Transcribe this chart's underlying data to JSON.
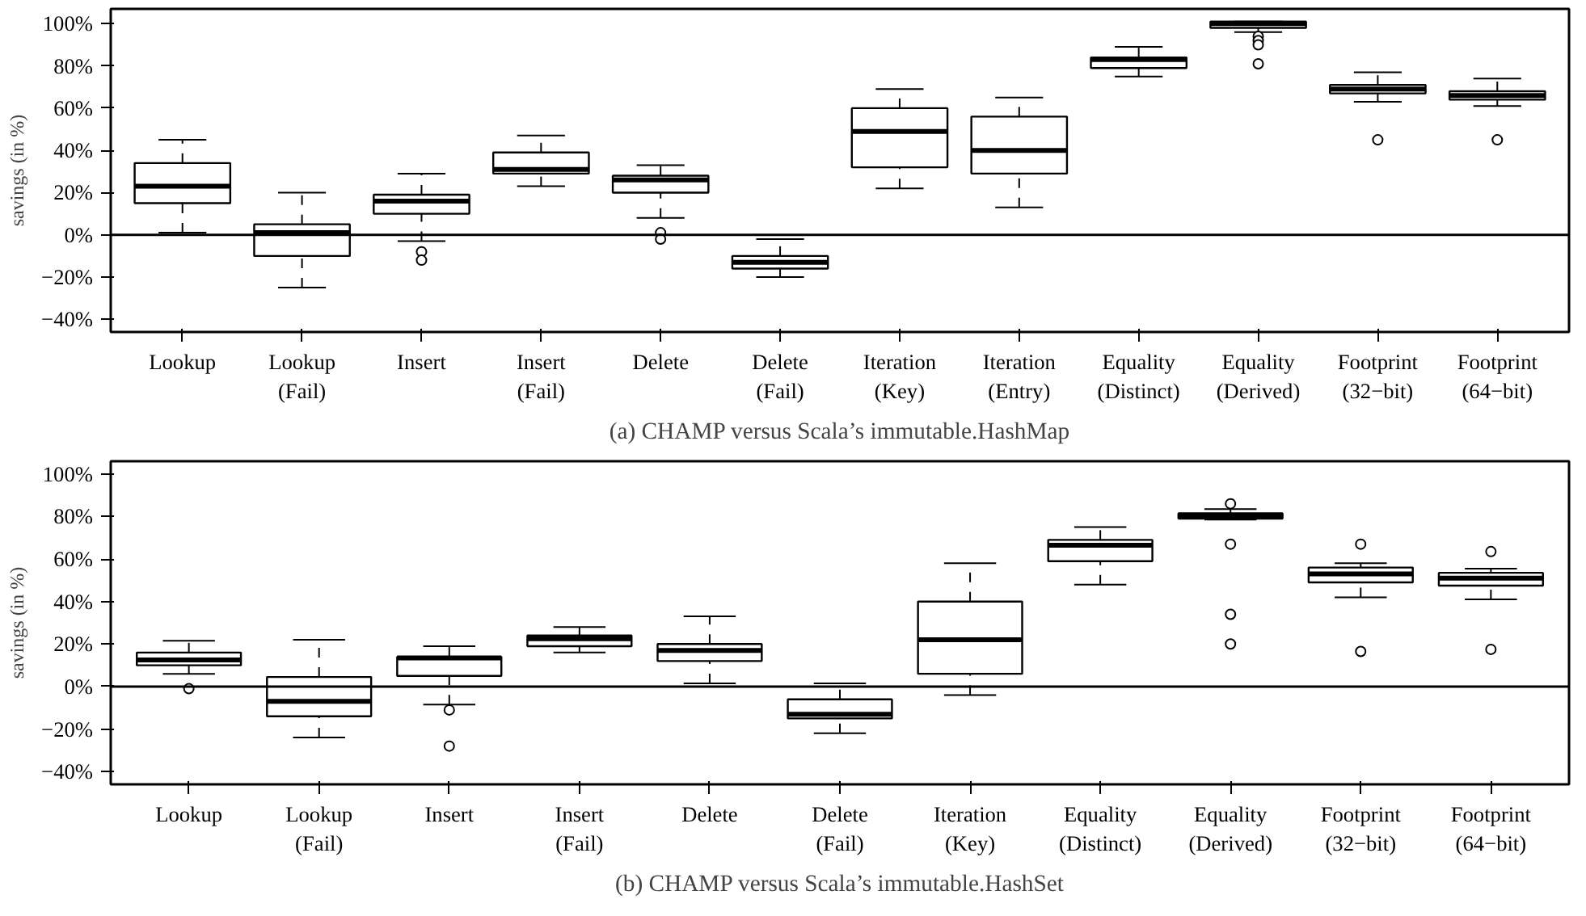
{
  "chart_data": [
    {
      "type": "box",
      "title": "(a) CHAMP versus Scala’s immutable.HashMap",
      "ylabel": "savings (in %)",
      "categories": [
        "Lookup",
        "Lookup\n(Fail)",
        "Insert",
        "Insert\n(Fail)",
        "Delete",
        "Delete\n(Fail)",
        "Iteration\n(Key)",
        "Iteration\n(Entry)",
        "Equality\n(Distinct)",
        "Equality\n(Derived)",
        "Footprint\n(32−bit)",
        "Footprint\n(64−bit)"
      ],
      "boxes": [
        {
          "low": 1,
          "q1": 15,
          "median": 23,
          "q3": 34,
          "high": 45
        },
        {
          "low": -25,
          "q1": -10,
          "median": 1,
          "q3": 5,
          "high": 20
        },
        {
          "low": -3,
          "q1": 10,
          "median": 16,
          "q3": 19,
          "high": 29,
          "outliers": [
            -8,
            -12
          ]
        },
        {
          "low": 23,
          "q1": 29,
          "median": 31,
          "q3": 39,
          "high": 47
        },
        {
          "low": 8,
          "q1": 20,
          "median": 26,
          "q3": 28,
          "high": 33,
          "outliers": [
            1,
            -2
          ]
        },
        {
          "low": -20,
          "q1": -16,
          "median": -13,
          "q3": -10,
          "high": -2
        },
        {
          "low": 22,
          "q1": 32,
          "median": 49,
          "q3": 60,
          "high": 69
        },
        {
          "low": 13,
          "q1": 29,
          "median": 40,
          "q3": 56,
          "high": 65
        },
        {
          "low": 75,
          "q1": 79,
          "median": 83,
          "q3": 84,
          "high": 89
        },
        {
          "low": 96,
          "q1": 98,
          "median": 100,
          "q3": 101,
          "high": 101,
          "outliers": [
            94,
            92,
            90,
            81
          ]
        },
        {
          "low": 63,
          "q1": 67,
          "median": 69,
          "q3": 71,
          "high": 77,
          "outliers": [
            45
          ]
        },
        {
          "low": 61,
          "q1": 64,
          "median": 66,
          "q3": 68,
          "high": 74,
          "outliers": [
            45
          ]
        }
      ],
      "ylim": [
        -46,
        107
      ],
      "yticks": [
        {
          "value": -40,
          "label": "−40%"
        },
        {
          "value": -20,
          "label": "−20%"
        },
        {
          "value": 0,
          "label": "0%"
        },
        {
          "value": 20,
          "label": "20%"
        },
        {
          "value": 40,
          "label": "40%"
        },
        {
          "value": 60,
          "label": "60%"
        },
        {
          "value": 80,
          "label": "80%"
        },
        {
          "value": 100,
          "label": "100%"
        }
      ],
      "ref_lines": [
        {
          "axis": "y",
          "value": 0,
          "label": null,
          "color": "#000000",
          "line_style": "solid"
        }
      ],
      "grid": false
    },
    {
      "type": "box",
      "title": "(b) CHAMP versus Scala’s immutable.HashSet",
      "ylabel": "savings (in %)",
      "categories": [
        "Lookup",
        "Lookup\n(Fail)",
        "Insert",
        "Insert\n(Fail)",
        "Delete",
        "Delete\n(Fail)",
        "Iteration\n(Key)",
        "Equality\n(Distinct)",
        "Equality\n(Derived)",
        "Footprint\n(32−bit)",
        "Footprint\n(64−bit)"
      ],
      "boxes": [
        {
          "low": 6,
          "q1": 10,
          "median": 12.5,
          "q3": 16,
          "high": 21.5,
          "outliers": [
            -1
          ]
        },
        {
          "low": -24,
          "q1": -14,
          "median": -7,
          "q3": 4.5,
          "high": 22
        },
        {
          "low": -8.5,
          "q1": 5,
          "median": 13.5,
          "q3": 14,
          "high": 19,
          "outliers": [
            -11,
            -28
          ]
        },
        {
          "low": 16,
          "q1": 19,
          "median": 22.5,
          "q3": 24,
          "high": 28
        },
        {
          "low": 1.5,
          "q1": 12,
          "median": 17,
          "q3": 20,
          "high": 33
        },
        {
          "low": -22,
          "q1": -15,
          "median": -13,
          "q3": -6,
          "high": 1.5
        },
        {
          "low": -4,
          "q1": 6,
          "median": 22,
          "q3": 40,
          "high": 58
        },
        {
          "low": 48,
          "q1": 59,
          "median": 66.5,
          "q3": 69,
          "high": 75
        },
        {
          "low": 78.5,
          "q1": 79,
          "median": 80.5,
          "q3": 81.5,
          "high": 83.5,
          "outliers": [
            86,
            67,
            34,
            20
          ]
        },
        {
          "low": 42,
          "q1": 49,
          "median": 53,
          "q3": 56,
          "high": 58,
          "outliers": [
            67,
            16.5
          ]
        },
        {
          "low": 41,
          "q1": 47.5,
          "median": 51,
          "q3": 53.5,
          "high": 55.5,
          "outliers": [
            63.5,
            17.5
          ]
        }
      ],
      "ylim": [
        -46,
        106
      ],
      "yticks": [
        {
          "value": -40,
          "label": "−40%"
        },
        {
          "value": -20,
          "label": "−20%"
        },
        {
          "value": 0,
          "label": "0%"
        },
        {
          "value": 20,
          "label": "20%"
        },
        {
          "value": 40,
          "label": "40%"
        },
        {
          "value": 60,
          "label": "60%"
        },
        {
          "value": 80,
          "label": "80%"
        },
        {
          "value": 100,
          "label": "100%"
        }
      ],
      "ref_lines": [
        {
          "axis": "y",
          "value": 0,
          "label": null,
          "color": "#000000",
          "line_style": "solid"
        }
      ],
      "grid": false
    }
  ]
}
